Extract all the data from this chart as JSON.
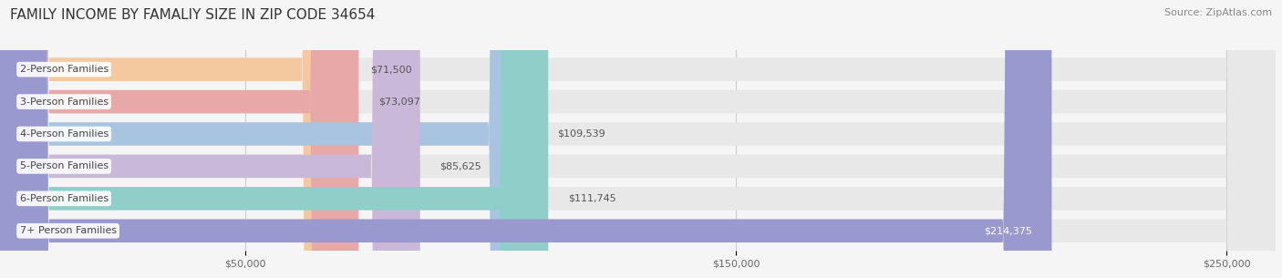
{
  "title": "FAMILY INCOME BY FAMALIY SIZE IN ZIP CODE 34654",
  "source": "Source: ZipAtlas.com",
  "categories": [
    "2-Person Families",
    "3-Person Families",
    "4-Person Families",
    "5-Person Families",
    "6-Person Families",
    "7+ Person Families"
  ],
  "values": [
    71500,
    73097,
    109539,
    85625,
    111745,
    214375
  ],
  "bar_colors": [
    "#f5c9a0",
    "#e8a8a8",
    "#a8c4e0",
    "#c9b8d8",
    "#8ecfca",
    "#9999d0"
  ],
  "value_labels": [
    "$71,500",
    "$73,097",
    "$109,539",
    "$85,625",
    "$111,745",
    "$214,375"
  ],
  "xlim": [
    0,
    260000
  ],
  "xticks": [
    50000,
    150000,
    250000
  ],
  "xtick_labels": [
    "$50,000",
    "$150,000",
    "$250,000"
  ],
  "bg_color": "#f5f5f5",
  "bar_bg_color": "#e8e8e8",
  "title_fontsize": 11,
  "source_fontsize": 8,
  "label_fontsize": 8,
  "value_fontsize": 8,
  "bar_height": 0.72,
  "value_inside_threshold": 170000,
  "rounding_size": 10000
}
